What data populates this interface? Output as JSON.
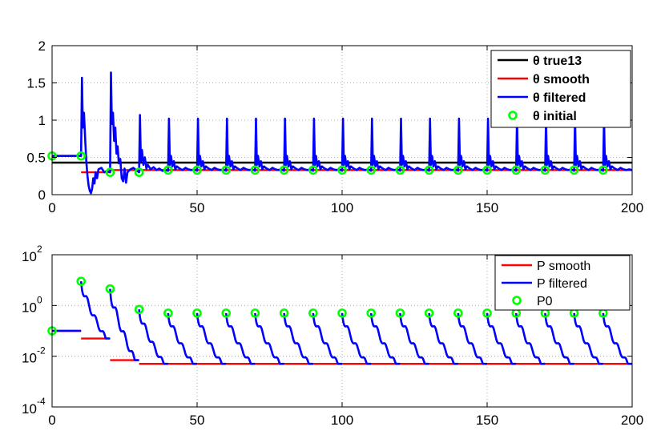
{
  "chart_data": [
    {
      "type": "line",
      "title": "",
      "xlabel": "",
      "ylabel": "",
      "xlim": [
        0,
        200
      ],
      "ylim": [
        0,
        2
      ],
      "x_ticks": [
        "0",
        "50",
        "100",
        "150",
        "200"
      ],
      "y_ticks": [
        "0",
        "0.5",
        "1",
        "1.5",
        "2"
      ],
      "grid": true,
      "legend_position": "top-right",
      "legend_bold": true,
      "colors": {
        "true": "#000000",
        "smooth": "#ff0000",
        "filtered": "#0000ff",
        "initial": "#00ff00"
      },
      "series": [
        {
          "name": "θ true13",
          "kind": "line",
          "x": [
            0,
            200
          ],
          "y": [
            0.43,
            0.43
          ]
        },
        {
          "name": "θ smooth",
          "kind": "step",
          "segments": [
            [
              0,
              10,
              0.52
            ],
            [
              10,
              20,
              0.3
            ],
            [
              20,
              200,
              0.33
            ]
          ]
        },
        {
          "name": "θ filtered",
          "kind": "line",
          "x": [
            0,
            10,
            10.3,
            10.6,
            11,
            11.4,
            11.8,
            12.2,
            12.6,
            13,
            13.4,
            13.8,
            14.2,
            14.6,
            15,
            15.5,
            16,
            17,
            18,
            19,
            20,
            20.3,
            20.6,
            21,
            21.4,
            21.8,
            22.2,
            22.6,
            23,
            23.5,
            24,
            24.5,
            25,
            25.5,
            26,
            27,
            28,
            29,
            30,
            30.3,
            30.6,
            31,
            31.5,
            32,
            32.5,
            33,
            34,
            35,
            36,
            37,
            38,
            39,
            40,
            40.3,
            40.6,
            41,
            41.5,
            42,
            42.5,
            43,
            44,
            45,
            46,
            47,
            48,
            49,
            50,
            50.3,
            50.6,
            51,
            51.5,
            52,
            52.5,
            53,
            54,
            55,
            56,
            57,
            58,
            59,
            60,
            60.3,
            60.6,
            61,
            61.5,
            62,
            62.5,
            63,
            64,
            65,
            66,
            67,
            68,
            69,
            70,
            70.3,
            70.6,
            71,
            71.5,
            72,
            72.5,
            73,
            74,
            75,
            76,
            77,
            78,
            79,
            80,
            80.3,
            80.6,
            81,
            81.5,
            82,
            82.5,
            83,
            84,
            85,
            86,
            87,
            88,
            89,
            90,
            90.3,
            90.6,
            91,
            91.5,
            92,
            92.5,
            93,
            94,
            95,
            96,
            97,
            98,
            99,
            100,
            100.3,
            100.6,
            101,
            101.5,
            102,
            102.5,
            103,
            104,
            105,
            106,
            107,
            108,
            109,
            110,
            110.3,
            110.6,
            111,
            111.5,
            112,
            112.5,
            113,
            114,
            115,
            116,
            117,
            118,
            119,
            120,
            120.3,
            120.6,
            121,
            121.5,
            122,
            122.5,
            123,
            124,
            125,
            126,
            127,
            128,
            129,
            130,
            130.3,
            130.6,
            131,
            131.5,
            132,
            132.5,
            133,
            134,
            135,
            136,
            137,
            138,
            139,
            140,
            140.3,
            140.6,
            141,
            141.5,
            142,
            142.5,
            143,
            144,
            145,
            146,
            147,
            148,
            149,
            150,
            150.3,
            150.6,
            151,
            151.5,
            152,
            152.5,
            153,
            154,
            155,
            156,
            157,
            158,
            159,
            160,
            160.3,
            160.6,
            161,
            161.5,
            162,
            162.5,
            163,
            164,
            165,
            166,
            167,
            168,
            169,
            170,
            170.3,
            170.6,
            171,
            171.5,
            172,
            172.5,
            173,
            174,
            175,
            176,
            177,
            178,
            179,
            180,
            180.3,
            180.6,
            181,
            181.5,
            182,
            182.5,
            183,
            184,
            185,
            186,
            187,
            188,
            189,
            190,
            190.3,
            190.6,
            191,
            191.5,
            192,
            192.5,
            193,
            194,
            195,
            196,
            197,
            198,
            199,
            200
          ],
          "y": [
            0.52,
            0.52,
            1.57,
            0.9,
            1.1,
            0.75,
            0.45,
            0.25,
            0.12,
            0.05,
            0.02,
            0.08,
            0.22,
            0.15,
            0.3,
            0.22,
            0.34,
            0.36,
            0.3,
            0.32,
            0.3,
            1.64,
            0.95,
            1.1,
            0.72,
            0.9,
            0.55,
            0.65,
            0.42,
            0.48,
            0.22,
            0.18,
            0.35,
            0.16,
            0.3,
            0.34,
            0.36,
            0.33,
            0.3,
            1.07,
            0.45,
            0.6,
            0.4,
            0.5,
            0.35,
            0.4,
            0.34,
            0.37,
            0.33,
            0.35,
            0.32,
            0.33,
            0.32,
            1.02,
            0.4,
            0.52,
            0.38,
            0.45,
            0.34,
            0.38,
            0.35,
            0.33,
            0.36,
            0.34,
            0.33,
            0.34,
            0.32,
            1.02,
            0.4,
            0.52,
            0.38,
            0.45,
            0.34,
            0.38,
            0.35,
            0.33,
            0.36,
            0.34,
            0.33,
            0.34,
            0.32,
            1.02,
            0.4,
            0.52,
            0.38,
            0.45,
            0.34,
            0.38,
            0.35,
            0.33,
            0.36,
            0.34,
            0.33,
            0.34,
            0.32,
            1.02,
            0.4,
            0.52,
            0.38,
            0.45,
            0.34,
            0.38,
            0.35,
            0.33,
            0.36,
            0.34,
            0.33,
            0.34,
            0.32,
            1.02,
            0.4,
            0.52,
            0.38,
            0.45,
            0.34,
            0.38,
            0.35,
            0.33,
            0.36,
            0.34,
            0.33,
            0.34,
            0.32,
            1.02,
            0.4,
            0.52,
            0.38,
            0.45,
            0.34,
            0.38,
            0.35,
            0.33,
            0.36,
            0.34,
            0.33,
            0.34,
            0.32,
            1.02,
            0.4,
            0.52,
            0.38,
            0.45,
            0.34,
            0.38,
            0.35,
            0.33,
            0.36,
            0.34,
            0.33,
            0.34,
            0.32,
            1.02,
            0.4,
            0.52,
            0.38,
            0.45,
            0.34,
            0.38,
            0.35,
            0.33,
            0.36,
            0.34,
            0.33,
            0.34,
            0.32,
            1.02,
            0.4,
            0.52,
            0.38,
            0.45,
            0.34,
            0.38,
            0.35,
            0.33,
            0.36,
            0.34,
            0.33,
            0.34,
            0.32,
            1.02,
            0.4,
            0.52,
            0.38,
            0.45,
            0.34,
            0.38,
            0.35,
            0.33,
            0.36,
            0.34,
            0.33,
            0.34,
            0.32,
            1.02,
            0.4,
            0.52,
            0.38,
            0.45,
            0.34,
            0.38,
            0.35,
            0.33,
            0.36,
            0.34,
            0.33,
            0.34,
            0.32,
            1.02,
            0.4,
            0.52,
            0.38,
            0.45,
            0.34,
            0.38,
            0.35,
            0.33,
            0.36,
            0.34,
            0.33,
            0.34,
            0.32,
            1.02,
            0.4,
            0.52,
            0.38,
            0.45,
            0.34,
            0.38,
            0.35,
            0.33,
            0.36,
            0.34,
            0.33,
            0.34,
            0.32,
            1.02,
            0.4,
            0.52,
            0.38,
            0.45,
            0.34,
            0.38,
            0.35,
            0.33,
            0.36,
            0.34,
            0.33,
            0.34,
            0.32,
            1.02,
            0.4,
            0.52,
            0.38,
            0.45,
            0.34,
            0.38,
            0.35,
            0.33,
            0.36,
            0.34,
            0.33,
            0.34,
            0.32,
            1.02,
            0.4,
            0.52,
            0.38,
            0.45,
            0.34,
            0.38,
            0.35,
            0.33,
            0.36,
            0.34,
            0.33,
            0.34,
            0.33
          ]
        },
        {
          "name": "θ initial",
          "kind": "markers",
          "x": [
            0,
            10,
            20,
            30,
            40,
            50,
            60,
            70,
            80,
            90,
            100,
            110,
            120,
            130,
            140,
            150,
            160,
            170,
            180,
            190
          ],
          "y": [
            0.52,
            0.52,
            0.3,
            0.3,
            0.33,
            0.33,
            0.33,
            0.33,
            0.33,
            0.33,
            0.33,
            0.33,
            0.33,
            0.33,
            0.33,
            0.33,
            0.33,
            0.33,
            0.33,
            0.33
          ]
        }
      ]
    },
    {
      "type": "line",
      "title": "",
      "xlabel": "",
      "ylabel": "",
      "xlim": [
        0,
        200
      ],
      "ylim": [
        0.0001,
        100
      ],
      "yscale": "log",
      "x_ticks": [
        "0",
        "50",
        "100",
        "150",
        "200"
      ],
      "y_ticks": [
        {
          "base": "10",
          "exp": "-4"
        },
        {
          "base": "10",
          "exp": "-2"
        },
        {
          "base": "10",
          "exp": "0"
        },
        {
          "base": "10",
          "exp": "2"
        }
      ],
      "grid": true,
      "legend_position": "top-right",
      "legend_bold": false,
      "colors": {
        "smooth": "#ff0000",
        "filtered": "#0000ff",
        "initial": "#00ff00"
      },
      "series": [
        {
          "name": "P smooth",
          "kind": "step",
          "segments": [
            [
              0,
              10,
              0.1
            ],
            [
              10,
              20,
              0.05
            ],
            [
              20,
              30,
              0.007
            ],
            [
              30,
              200,
              0.005
            ]
          ]
        },
        {
          "name": "P filtered",
          "kind": "decay",
          "starts": [
            0,
            10,
            20,
            30,
            40,
            50,
            60,
            70,
            80,
            90,
            100,
            110,
            120,
            130,
            140,
            150,
            160,
            170,
            180,
            190
          ],
          "start_values": [
            0.1,
            9.0,
            4.5,
            0.7,
            0.5,
            0.5,
            0.5,
            0.5,
            0.5,
            0.5,
            0.5,
            0.5,
            0.5,
            0.5,
            0.5,
            0.5,
            0.5,
            0.5,
            0.5,
            0.5
          ],
          "end_values": [
            0.1,
            0.05,
            0.007,
            0.005,
            0.005,
            0.005,
            0.005,
            0.005,
            0.005,
            0.005,
            0.005,
            0.005,
            0.005,
            0.005,
            0.005,
            0.005,
            0.005,
            0.005,
            0.005,
            0.005
          ]
        },
        {
          "name": "P0",
          "kind": "markers",
          "x": [
            0,
            10,
            20,
            30,
            40,
            50,
            60,
            70,
            80,
            90,
            100,
            110,
            120,
            130,
            140,
            150,
            160,
            170,
            180,
            190
          ],
          "y": [
            0.1,
            9.0,
            4.5,
            0.7,
            0.5,
            0.5,
            0.5,
            0.5,
            0.5,
            0.5,
            0.5,
            0.5,
            0.5,
            0.5,
            0.5,
            0.5,
            0.5,
            0.5,
            0.5,
            0.5
          ]
        }
      ]
    }
  ]
}
